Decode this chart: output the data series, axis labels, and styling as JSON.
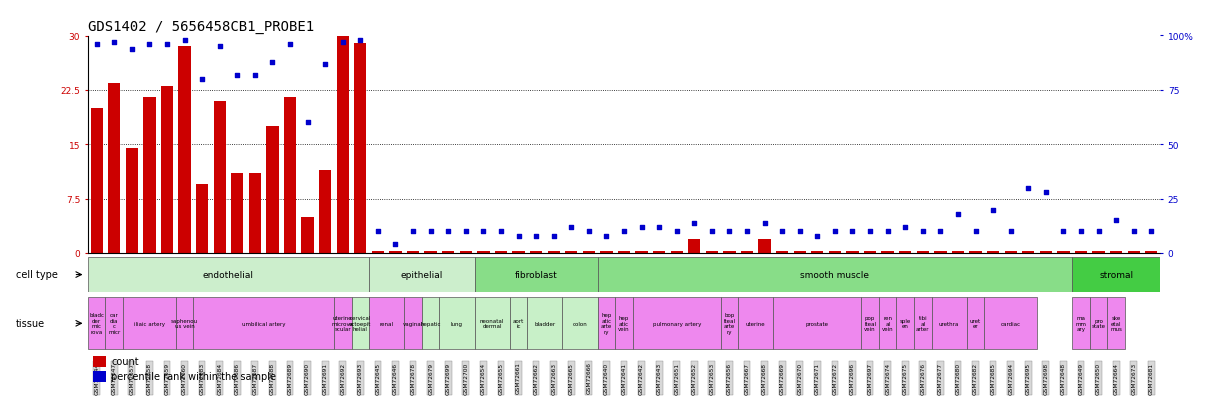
{
  "title": "GDS1402 / 5656458CB1_PROBE1",
  "samples": [
    "GSM72644",
    "GSM72647",
    "GSM72657",
    "GSM72658",
    "GSM72659",
    "GSM72660",
    "GSM72683",
    "GSM72684",
    "GSM72686",
    "GSM72687",
    "GSM72688",
    "GSM72689",
    "GSM72690",
    "GSM72691",
    "GSM72692",
    "GSM72693",
    "GSM72645",
    "GSM72646",
    "GSM72678",
    "GSM72679",
    "GSM72699",
    "GSM72700",
    "GSM72654",
    "GSM72655",
    "GSM72661",
    "GSM72662",
    "GSM72663",
    "GSM72665",
    "GSM72666",
    "GSM72640",
    "GSM72641",
    "GSM72642",
    "GSM72643",
    "GSM72651",
    "GSM72652",
    "GSM72653",
    "GSM72656",
    "GSM72667",
    "GSM72668",
    "GSM72669",
    "GSM72670",
    "GSM72671",
    "GSM72672",
    "GSM72696",
    "GSM72697",
    "GSM72674",
    "GSM72675",
    "GSM72676",
    "GSM72677",
    "GSM72680",
    "GSM72682",
    "GSM72685",
    "GSM72694",
    "GSM72695",
    "GSM72698",
    "GSM72648",
    "GSM72649",
    "GSM72650",
    "GSM72664",
    "GSM72673",
    "GSM72681"
  ],
  "bar_values": [
    20.0,
    23.5,
    14.5,
    21.5,
    23.0,
    28.5,
    9.5,
    21.0,
    11.0,
    11.0,
    17.5,
    21.5,
    5.0,
    11.5,
    30.0,
    29.0,
    0.3,
    0.3,
    0.3,
    0.3,
    0.3,
    0.3,
    0.3,
    0.3,
    0.3,
    0.3,
    0.3,
    0.3,
    0.3,
    0.3,
    0.3,
    0.3,
    0.3,
    0.3,
    2.0,
    0.3,
    0.3,
    0.3,
    2.0,
    0.3,
    0.3,
    0.3,
    0.3,
    0.3,
    0.3,
    0.3,
    0.3,
    0.3,
    0.3,
    0.3,
    0.3,
    0.3,
    0.3,
    0.3,
    0.3,
    0.3,
    0.3,
    0.3,
    0.3,
    0.3,
    0.3
  ],
  "percentile_values": [
    96,
    97,
    94,
    96,
    96,
    98,
    80,
    95,
    82,
    82,
    88,
    96,
    60,
    87,
    97,
    98,
    10,
    4,
    10,
    10,
    10,
    10,
    10,
    10,
    8,
    8,
    8,
    12,
    10,
    8,
    10,
    12,
    12,
    10,
    14,
    10,
    10,
    10,
    14,
    10,
    10,
    8,
    10,
    10,
    10,
    10,
    12,
    10,
    10,
    18,
    10,
    20,
    10,
    30,
    28,
    10,
    10,
    10,
    15,
    10,
    10
  ],
  "cell_type_groups": [
    {
      "label": "endothelial",
      "start": 0,
      "end": 15,
      "color": "#c8f0c8"
    },
    {
      "label": "epithelial",
      "start": 16,
      "end": 21,
      "color": "#c8f0c8"
    },
    {
      "label": "fibroblast",
      "start": 22,
      "end": 28,
      "color": "#88dd88"
    },
    {
      "label": "smooth muscle",
      "start": 29,
      "end": 55,
      "color": "#88dd88"
    },
    {
      "label": "stromal",
      "start": 56,
      "end": 60,
      "color": "#44cc44"
    }
  ],
  "tissue_groups": [
    {
      "label": "bladc\nder\nmic\nrova",
      "start": 0,
      "end": 0,
      "color": "#ee88ee"
    },
    {
      "label": "car\ndia\nc\nmicr",
      "start": 1,
      "end": 1,
      "color": "#ee88ee"
    },
    {
      "label": "iliaic artery",
      "start": 2,
      "end": 4,
      "color": "#ee88ee"
    },
    {
      "label": "saphenou\nus vein",
      "start": 5,
      "end": 5,
      "color": "#ee88ee"
    },
    {
      "label": "umbilical artery",
      "start": 6,
      "end": 13,
      "color": "#ee88ee"
    },
    {
      "label": "uterine\nmicrova\nscular",
      "start": 14,
      "end": 14,
      "color": "#ee88ee"
    },
    {
      "label": "cervical\nectoepit\nhelial",
      "start": 15,
      "end": 15,
      "color": "#c8f0c8"
    },
    {
      "label": "renal",
      "start": 16,
      "end": 17,
      "color": "#ee88ee"
    },
    {
      "label": "vaginal",
      "start": 18,
      "end": 18,
      "color": "#ee88ee"
    },
    {
      "label": "hepatic",
      "start": 19,
      "end": 19,
      "color": "#c8f0c8"
    },
    {
      "label": "lung",
      "start": 20,
      "end": 21,
      "color": "#c8f0c8"
    },
    {
      "label": "neonatal\ndermal",
      "start": 22,
      "end": 23,
      "color": "#c8f0c8"
    },
    {
      "label": "aort\nic",
      "start": 24,
      "end": 24,
      "color": "#c8f0c8"
    },
    {
      "label": "bladder",
      "start": 25,
      "end": 26,
      "color": "#c8f0c8"
    },
    {
      "label": "colon",
      "start": 27,
      "end": 28,
      "color": "#c8f0c8"
    },
    {
      "label": "hep\natic\narte\nry",
      "start": 29,
      "end": 29,
      "color": "#ee88ee"
    },
    {
      "label": "hep\natic\nvein",
      "start": 30,
      "end": 30,
      "color": "#ee88ee"
    },
    {
      "label": "pulmonary artery",
      "start": 31,
      "end": 35,
      "color": "#ee88ee"
    },
    {
      "label": "bop\nlteal\narte\nry",
      "start": 36,
      "end": 36,
      "color": "#ee88ee"
    },
    {
      "label": "uterine",
      "start": 37,
      "end": 38,
      "color": "#ee88ee"
    },
    {
      "label": "prostate",
      "start": 39,
      "end": 43,
      "color": "#ee88ee"
    },
    {
      "label": "pop\nlteal\nvein",
      "start": 44,
      "end": 44,
      "color": "#ee88ee"
    },
    {
      "label": "ren\nal\nvein",
      "start": 45,
      "end": 45,
      "color": "#ee88ee"
    },
    {
      "label": "sple\nen",
      "start": 46,
      "end": 46,
      "color": "#ee88ee"
    },
    {
      "label": "tibi\nal\narter",
      "start": 47,
      "end": 47,
      "color": "#ee88ee"
    },
    {
      "label": "urethra",
      "start": 48,
      "end": 49,
      "color": "#ee88ee"
    },
    {
      "label": "uret\ner",
      "start": 50,
      "end": 50,
      "color": "#ee88ee"
    },
    {
      "label": "cardiac",
      "start": 51,
      "end": 53,
      "color": "#ee88ee"
    },
    {
      "label": "ma\nmm\nary",
      "start": 56,
      "end": 56,
      "color": "#ee88ee"
    },
    {
      "label": "pro\nstate",
      "start": 57,
      "end": 57,
      "color": "#ee88ee"
    },
    {
      "label": "ske\netal\nmus",
      "start": 58,
      "end": 58,
      "color": "#ee88ee"
    }
  ],
  "bar_color": "#cc0000",
  "dot_color": "#0000cc",
  "title_fontsize": 10
}
